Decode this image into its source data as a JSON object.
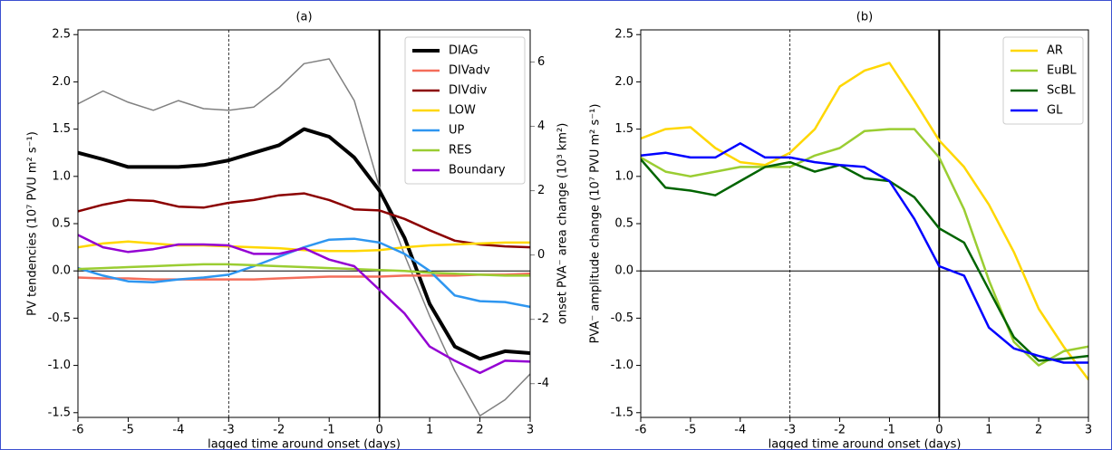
{
  "chart_data": [
    {
      "type": "line",
      "title": "(a)",
      "xlabel": "lagged time around onset (days)",
      "ylabel": "PV tendencies (10⁷ PVU m² s⁻¹)",
      "y2label": "onset PVA⁻ area change (10³ km²)",
      "x": [
        -6,
        -5.5,
        -5,
        -4.5,
        -4,
        -3.5,
        -3,
        -2.5,
        -2,
        -1.5,
        -1,
        -0.5,
        0,
        0.5,
        1,
        1.5,
        2,
        2.5,
        3
      ],
      "xlim": [
        -6,
        3
      ],
      "xticks": [
        -6,
        -5,
        -4,
        -3,
        -2,
        -1,
        0,
        1,
        2,
        3
      ],
      "ylim": [
        -1.55,
        2.55
      ],
      "yticks": [
        2.5,
        {
          "value": 2,
          "label": "2.0"
        },
        1.5,
        {
          "value": 1,
          "label": "1.0"
        },
        0.5,
        {
          "value": 0,
          "label": "0.0"
        },
        -0.5,
        {
          "value": -1,
          "label": "-1.0"
        },
        -1.5
      ],
      "y2lim": [
        -5.05,
        7
      ],
      "y2ticks": [
        -4,
        -2,
        0,
        2,
        4,
        6
      ],
      "vlines": [
        {
          "x": -3,
          "style": "dashed"
        },
        {
          "x": 0,
          "style": "solid"
        }
      ],
      "hline": 0,
      "legend": "upper right",
      "series": [
        {
          "name": "DIAG",
          "color": "#000000",
          "width": 4,
          "values": [
            1.25,
            1.18,
            1.1,
            1.1,
            1.1,
            1.12,
            1.17,
            1.25,
            1.33,
            1.5,
            1.42,
            1.2,
            0.85,
            0.35,
            -0.35,
            -0.8,
            -0.93,
            -0.85,
            -0.87
          ]
        },
        {
          "name": "DIVadv",
          "color": "#f46d5a",
          "width": 2.5,
          "values": [
            -0.07,
            -0.08,
            -0.08,
            -0.09,
            -0.09,
            -0.09,
            -0.09,
            -0.09,
            -0.08,
            -0.07,
            -0.06,
            -0.06,
            -0.06,
            -0.05,
            -0.05,
            -0.05,
            -0.04,
            -0.04,
            -0.03
          ]
        },
        {
          "name": "DIVdiv",
          "color": "#8b0000",
          "width": 2.5,
          "values": [
            0.63,
            0.7,
            0.75,
            0.74,
            0.68,
            0.67,
            0.72,
            0.75,
            0.8,
            0.82,
            0.75,
            0.65,
            0.64,
            0.55,
            0.43,
            0.32,
            0.28,
            0.26,
            0.25
          ]
        },
        {
          "name": "LOW",
          "color": "#ffd700",
          "width": 2.5,
          "values": [
            0.25,
            0.29,
            0.31,
            0.29,
            0.27,
            0.27,
            0.26,
            0.25,
            0.24,
            0.22,
            0.21,
            0.21,
            0.22,
            0.25,
            0.27,
            0.28,
            0.29,
            0.3,
            0.3
          ]
        },
        {
          "name": "UP",
          "color": "#2e96f0",
          "width": 2.5,
          "values": [
            0.03,
            -0.05,
            -0.11,
            -0.12,
            -0.09,
            -0.07,
            -0.04,
            0.05,
            0.15,
            0.25,
            0.33,
            0.34,
            0.3,
            0.18,
            0.0,
            -0.26,
            -0.32,
            -0.33,
            -0.38
          ]
        },
        {
          "name": "RES",
          "color": "#9acd32",
          "width": 2.5,
          "values": [
            0.02,
            0.03,
            0.04,
            0.05,
            0.06,
            0.07,
            0.07,
            0.06,
            0.05,
            0.04,
            0.03,
            0.02,
            0.01,
            0.0,
            -0.02,
            -0.03,
            -0.04,
            -0.05,
            -0.05
          ]
        },
        {
          "name": "Boundary",
          "color": "#9400d3",
          "width": 2.5,
          "values": [
            0.38,
            0.25,
            0.2,
            0.23,
            0.28,
            0.28,
            0.27,
            0.18,
            0.18,
            0.24,
            0.12,
            0.05,
            -0.2,
            -0.45,
            -0.8,
            -0.95,
            -1.08,
            -0.95,
            -0.96
          ]
        },
        {
          "color": "#808080",
          "width": 1.5,
          "axis": "y2",
          "values": [
            4.7,
            5.1,
            4.75,
            4.5,
            4.8,
            4.55,
            4.5,
            4.6,
            5.2,
            5.95,
            6.1,
            4.8,
            2.1,
            0,
            -1.9,
            -3.6,
            -5.0,
            -4.5,
            -3.7
          ]
        }
      ]
    },
    {
      "type": "line",
      "title": "(b)",
      "xlabel": "lagged time around onset (days)",
      "ylabel": "PVA⁻ amplitude change (10⁷ PVU m² s⁻¹)",
      "x": [
        -6,
        -5.5,
        -5,
        -4.5,
        -4,
        -3.5,
        -3,
        -2.5,
        -2,
        -1.5,
        -1,
        -0.5,
        0,
        0.5,
        1,
        1.5,
        2,
        2.5,
        3
      ],
      "xlim": [
        -6,
        3
      ],
      "xticks": [
        -6,
        -5,
        -4,
        -3,
        -2,
        -1,
        0,
        1,
        2,
        3
      ],
      "ylim": [
        -1.55,
        2.55
      ],
      "yticks": [
        2.5,
        {
          "value": 2,
          "label": "2.0"
        },
        1.5,
        {
          "value": 1,
          "label": "1.0"
        },
        0.5,
        {
          "value": 0,
          "label": "0.0"
        },
        -0.5,
        {
          "value": -1,
          "label": "-1.0"
        },
        -1.5
      ],
      "vlines": [
        {
          "x": -3,
          "style": "dashed"
        },
        {
          "x": 0,
          "style": "solid"
        }
      ],
      "hline": 0,
      "legend": "upper right",
      "series": [
        {
          "name": "AR",
          "color": "#ffd700",
          "width": 2.5,
          "values": [
            1.4,
            1.5,
            1.52,
            1.3,
            1.15,
            1.12,
            1.25,
            1.5,
            1.95,
            2.12,
            2.2,
            1.8,
            1.38,
            1.1,
            0.7,
            0.2,
            -0.4,
            -0.8,
            -1.15
          ]
        },
        {
          "name": "EuBL",
          "color": "#9acd32",
          "width": 2.5,
          "values": [
            1.2,
            1.05,
            1.0,
            1.05,
            1.1,
            1.1,
            1.1,
            1.22,
            1.3,
            1.48,
            1.5,
            1.5,
            1.2,
            0.65,
            -0.1,
            -0.75,
            -1.0,
            -0.85,
            -0.8
          ]
        },
        {
          "name": "ScBL",
          "color": "#006400",
          "width": 2.5,
          "values": [
            1.18,
            0.88,
            0.85,
            0.8,
            0.95,
            1.1,
            1.15,
            1.05,
            1.12,
            0.98,
            0.95,
            0.78,
            0.45,
            0.3,
            -0.2,
            -0.7,
            -0.95,
            -0.93,
            -0.9
          ]
        },
        {
          "name": "GL",
          "color": "#0000ff",
          "width": 2.5,
          "values": [
            1.22,
            1.25,
            1.2,
            1.2,
            1.35,
            1.2,
            1.2,
            1.15,
            1.12,
            1.1,
            0.95,
            0.55,
            0.05,
            -0.05,
            -0.6,
            -0.82,
            -0.9,
            -0.97,
            -0.97
          ]
        }
      ]
    }
  ]
}
